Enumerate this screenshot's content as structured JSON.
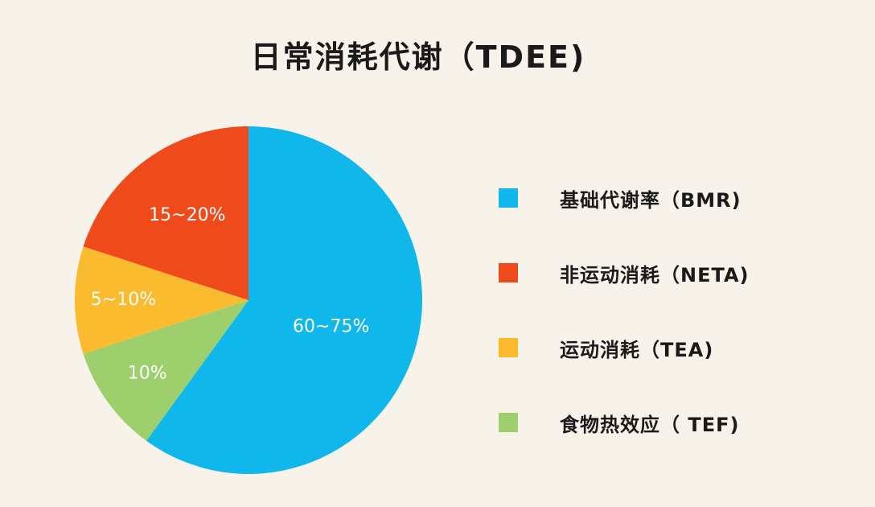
{
  "chart_data": {
    "type": "pie",
    "title": "日常消耗代谢（TDEE)",
    "slices": [
      {
        "name": "基础代谢率（BMR)",
        "label": "60~75%",
        "value": 60,
        "color": "#10b7eb"
      },
      {
        "name": "食物热效应（ TEF)",
        "label": "10%",
        "value": 10,
        "color": "#9dd06c"
      },
      {
        "name": "运动消耗（TEA)",
        "label": "5~10%",
        "value": 10,
        "color": "#fbbb2f"
      },
      {
        "name": "非运动消耗（NETA)",
        "label": "15~20%",
        "value": 20,
        "color": "#ef4a1c"
      }
    ],
    "legend_position": "right",
    "legend": [
      {
        "name": "基础代谢率（BMR)",
        "color": "#10b7eb"
      },
      {
        "name": "非运动消耗（NETA)",
        "color": "#ef4a1c"
      },
      {
        "name": "运动消耗（TEA)",
        "color": "#fbbb2f"
      },
      {
        "name": "食物热效应（ TEF)",
        "color": "#9dd06c"
      }
    ]
  }
}
